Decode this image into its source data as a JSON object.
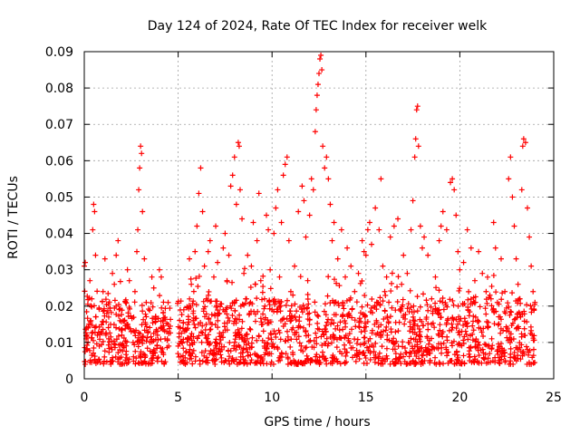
{
  "chart_data": {
    "type": "scatter",
    "title": "Day 124 of 2024, Rate Of TEC Index for receiver welk",
    "xlabel": "GPS time / hours",
    "ylabel": "ROTI / TECUs",
    "xlim": [
      0,
      25
    ],
    "ylim": [
      0,
      0.09
    ],
    "xticks": [
      0,
      5,
      10,
      15,
      20,
      25
    ],
    "yticks": [
      0,
      0.01,
      0.02,
      0.03,
      0.04,
      0.05,
      0.06,
      0.07,
      0.08,
      0.09
    ],
    "xtick_labels": [
      "0",
      "5",
      "10",
      "15",
      "20",
      "25"
    ],
    "ytick_labels": [
      "0",
      "0.01",
      "0.02",
      "0.03",
      "0.04",
      "0.05",
      "0.06",
      "0.07",
      "0.08",
      "0.09"
    ],
    "grid": true,
    "marker": "+",
    "color": "#ff0000",
    "series": [
      {
        "name": "ROTI",
        "points": [
          [
            0.0,
            0.031
          ],
          [
            0.05,
            0.032
          ],
          [
            0.1,
            0.011
          ],
          [
            0.15,
            0.008
          ],
          [
            0.2,
            0.014
          ],
          [
            0.3,
            0.027
          ],
          [
            0.35,
            0.016
          ],
          [
            0.4,
            0.022
          ],
          [
            0.45,
            0.041
          ],
          [
            0.5,
            0.048
          ],
          [
            0.55,
            0.046
          ],
          [
            0.6,
            0.034
          ],
          [
            0.7,
            0.012
          ],
          [
            0.8,
            0.009
          ],
          [
            0.9,
            0.013
          ],
          [
            1.0,
            0.024
          ],
          [
            1.1,
            0.033
          ],
          [
            1.2,
            0.018
          ],
          [
            1.3,
            0.011
          ],
          [
            1.4,
            0.015
          ],
          [
            1.5,
            0.029
          ],
          [
            1.6,
            0.026
          ],
          [
            1.7,
            0.034
          ],
          [
            1.8,
            0.038
          ],
          [
            1.9,
            0.016
          ],
          [
            2.0,
            0.012
          ],
          [
            2.1,
            0.009
          ],
          [
            2.2,
            0.021
          ],
          [
            2.3,
            0.03
          ],
          [
            2.4,
            0.027
          ],
          [
            2.5,
            0.013
          ],
          [
            2.6,
            0.01
          ],
          [
            2.7,
            0.024
          ],
          [
            2.8,
            0.035
          ],
          [
            2.85,
            0.041
          ],
          [
            2.9,
            0.052
          ],
          [
            2.95,
            0.058
          ],
          [
            3.0,
            0.064
          ],
          [
            3.05,
            0.062
          ],
          [
            3.1,
            0.046
          ],
          [
            3.2,
            0.033
          ],
          [
            3.3,
            0.021
          ],
          [
            3.4,
            0.013
          ],
          [
            3.5,
            0.01
          ],
          [
            3.6,
            0.028
          ],
          [
            3.7,
            0.025
          ],
          [
            3.8,
            0.017
          ],
          [
            3.9,
            0.012
          ],
          [
            4.0,
            0.03
          ],
          [
            4.1,
            0.028
          ],
          [
            4.2,
            0.016
          ],
          [
            4.3,
            0.011
          ],
          [
            4.4,
            0.013
          ],
          [
            4.5,
            0.009
          ],
          [
            5.0,
            0.009
          ],
          [
            5.1,
            0.014
          ],
          [
            5.2,
            0.01
          ],
          [
            5.3,
            0.019
          ],
          [
            5.5,
            0.011
          ],
          [
            5.6,
            0.033
          ],
          [
            5.7,
            0.026
          ],
          [
            5.8,
            0.018
          ],
          [
            5.9,
            0.035
          ],
          [
            6.0,
            0.042
          ],
          [
            6.1,
            0.051
          ],
          [
            6.2,
            0.058
          ],
          [
            6.3,
            0.046
          ],
          [
            6.4,
            0.031
          ],
          [
            6.5,
            0.022
          ],
          [
            6.6,
            0.035
          ],
          [
            6.7,
            0.038
          ],
          [
            6.8,
            0.015
          ],
          [
            6.9,
            0.028
          ],
          [
            7.0,
            0.042
          ],
          [
            7.1,
            0.032
          ],
          [
            7.2,
            0.018
          ],
          [
            7.3,
            0.012
          ],
          [
            7.4,
            0.036
          ],
          [
            7.5,
            0.04
          ],
          [
            7.6,
            0.027
          ],
          [
            7.7,
            0.034
          ],
          [
            7.8,
            0.053
          ],
          [
            7.9,
            0.056
          ],
          [
            8.0,
            0.061
          ],
          [
            8.1,
            0.048
          ],
          [
            8.2,
            0.065
          ],
          [
            8.25,
            0.064
          ],
          [
            8.3,
            0.052
          ],
          [
            8.4,
            0.044
          ],
          [
            8.5,
            0.029
          ],
          [
            8.6,
            0.022
          ],
          [
            8.7,
            0.034
          ],
          [
            8.8,
            0.018
          ],
          [
            8.9,
            0.031
          ],
          [
            9.0,
            0.043
          ],
          [
            9.1,
            0.026
          ],
          [
            9.2,
            0.038
          ],
          [
            9.3,
            0.051
          ],
          [
            9.4,
            0.027
          ],
          [
            9.5,
            0.015
          ],
          [
            9.6,
            0.022
          ],
          [
            9.7,
            0.045
          ],
          [
            9.8,
            0.041
          ],
          [
            9.9,
            0.03
          ],
          [
            10.0,
            0.019
          ],
          [
            10.1,
            0.04
          ],
          [
            10.2,
            0.047
          ],
          [
            10.3,
            0.052
          ],
          [
            10.4,
            0.028
          ],
          [
            10.5,
            0.043
          ],
          [
            10.6,
            0.056
          ],
          [
            10.7,
            0.059
          ],
          [
            10.8,
            0.061
          ],
          [
            10.9,
            0.038
          ],
          [
            11.0,
            0.024
          ],
          [
            11.2,
            0.031
          ],
          [
            11.4,
            0.046
          ],
          [
            11.6,
            0.053
          ],
          [
            11.7,
            0.049
          ],
          [
            11.8,
            0.039
          ],
          [
            11.9,
            0.027
          ],
          [
            12.0,
            0.045
          ],
          [
            12.1,
            0.055
          ],
          [
            12.2,
            0.052
          ],
          [
            12.3,
            0.068
          ],
          [
            12.35,
            0.074
          ],
          [
            12.4,
            0.078
          ],
          [
            12.45,
            0.081
          ],
          [
            12.5,
            0.084
          ],
          [
            12.55,
            0.088
          ],
          [
            12.6,
            0.089
          ],
          [
            12.65,
            0.085
          ],
          [
            12.7,
            0.064
          ],
          [
            12.8,
            0.058
          ],
          [
            12.9,
            0.061
          ],
          [
            13.0,
            0.055
          ],
          [
            13.1,
            0.048
          ],
          [
            13.2,
            0.038
          ],
          [
            13.3,
            0.043
          ],
          [
            13.5,
            0.033
          ],
          [
            13.7,
            0.041
          ],
          [
            13.9,
            0.028
          ],
          [
            14.0,
            0.036
          ],
          [
            14.2,
            0.031
          ],
          [
            14.4,
            0.024
          ],
          [
            14.6,
            0.029
          ],
          [
            14.8,
            0.038
          ],
          [
            14.9,
            0.035
          ],
          [
            15.0,
            0.034
          ],
          [
            15.1,
            0.041
          ],
          [
            15.2,
            0.043
          ],
          [
            15.3,
            0.037
          ],
          [
            15.5,
            0.047
          ],
          [
            15.7,
            0.041
          ],
          [
            15.8,
            0.055
          ],
          [
            15.9,
            0.031
          ],
          [
            16.0,
            0.024
          ],
          [
            16.1,
            0.028
          ],
          [
            16.3,
            0.039
          ],
          [
            16.5,
            0.042
          ],
          [
            16.7,
            0.044
          ],
          [
            16.9,
            0.026
          ],
          [
            17.0,
            0.034
          ],
          [
            17.2,
            0.029
          ],
          [
            17.4,
            0.041
          ],
          [
            17.5,
            0.049
          ],
          [
            17.6,
            0.061
          ],
          [
            17.65,
            0.066
          ],
          [
            17.7,
            0.074
          ],
          [
            17.75,
            0.075
          ],
          [
            17.8,
            0.064
          ],
          [
            17.9,
            0.042
          ],
          [
            18.0,
            0.036
          ],
          [
            18.1,
            0.039
          ],
          [
            18.3,
            0.034
          ],
          [
            18.5,
            0.022
          ],
          [
            18.7,
            0.028
          ],
          [
            18.9,
            0.038
          ],
          [
            19.0,
            0.042
          ],
          [
            19.1,
            0.046
          ],
          [
            19.3,
            0.041
          ],
          [
            19.5,
            0.054
          ],
          [
            19.6,
            0.055
          ],
          [
            19.7,
            0.052
          ],
          [
            19.8,
            0.045
          ],
          [
            19.9,
            0.035
          ],
          [
            20.0,
            0.03
          ],
          [
            20.2,
            0.032
          ],
          [
            20.4,
            0.041
          ],
          [
            20.6,
            0.036
          ],
          [
            20.8,
            0.027
          ],
          [
            21.0,
            0.035
          ],
          [
            21.2,
            0.029
          ],
          [
            21.4,
            0.024
          ],
          [
            21.6,
            0.023
          ],
          [
            21.8,
            0.043
          ],
          [
            21.9,
            0.036
          ],
          [
            22.0,
            0.021
          ],
          [
            22.2,
            0.033
          ],
          [
            22.4,
            0.024
          ],
          [
            22.6,
            0.055
          ],
          [
            22.7,
            0.061
          ],
          [
            22.8,
            0.05
          ],
          [
            22.9,
            0.042
          ],
          [
            23.0,
            0.033
          ],
          [
            23.1,
            0.026
          ],
          [
            23.2,
            0.022
          ],
          [
            23.3,
            0.052
          ],
          [
            23.35,
            0.064
          ],
          [
            23.4,
            0.066
          ],
          [
            23.5,
            0.065
          ],
          [
            23.6,
            0.047
          ],
          [
            23.7,
            0.039
          ],
          [
            23.8,
            0.031
          ],
          [
            23.9,
            0.024
          ],
          [
            24.0,
            0.021
          ]
        ],
        "band": {
          "description": "dense continuous data band",
          "segments": [
            [
              0.0,
              4.6
            ],
            [
              4.95,
              24.0
            ]
          ],
          "ymin": 0.004,
          "ymax_typical": 0.022
        }
      }
    ]
  }
}
